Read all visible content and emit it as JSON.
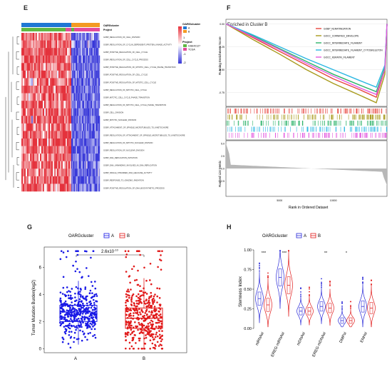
{
  "panels": {
    "E": {
      "letter": "E",
      "legend_oarg_title": "OARGcluster",
      "legend_oarg_items": [
        "A",
        "B"
      ],
      "legend_project_title": "Project",
      "legend_project_items": [
        "GSE42127",
        "TCGA"
      ],
      "row_labels_header": "OARGcluster",
      "row_labels_header2": "Project",
      "colorbar_ticks": [
        "2",
        "1",
        "0",
        "-1",
        "-2"
      ],
      "genesets": [
        "GOBP_REGULATION_OF_CELL_DIVISION",
        "GOBP_REGULATION_OF_CYCLIN_DEPENDENT_PROTEIN_KINASE_ACTIVITY",
        "GOBP_POSITIVE_REGULATION_OF_CELL_CYCLE",
        "GOBP_REGULATION_OF_CELL_CYCLE_PROCESS",
        "GOBP_POSITIVE_REGULATION_OF_MITOTIC_CELL_CYCLE_PHASE_TRANSITION",
        "GOBP_POSITIVE_REGULATION_OF_CELL_CYCLE",
        "GOBP_POSITIVE_REGULATION_OF_MITOTIC_CELL_CYCLE",
        "GOBP_REGULATION_OF_MITOTIC_CELL_CYCLE",
        "GOBP_MITOTIC_CELL_CYCLE_PHASE_TRANSITION",
        "GOBP_REGULATION_OF_MITOTIC_CELL_CYCLE_PHASE_TRANSITION",
        "GOBP_CELL_DIVISION",
        "GOBP_MITOTIC_NUCLEAR_DIVISION",
        "GOBP_ATTACHMENT_OF_SPINDLE_MICROTUBULES_TO_KINETOCHORE",
        "GOBP_REGULATION_OF_ATTACHMENT_OF_SPINDLE_MICROTUBULES_TO_KINETOCHORE",
        "GOBP_REGULATION_OF_MITOTIC_NUCLEAR_DIVISION",
        "GOBP_REGULATION_OF_NUCLEAR_DIVISION",
        "GOBP_DNA_REPLICATION_INITIATION",
        "GOBP_DNA_UNWINDING_INVOLVED_IN_DNA_REPLICATION",
        "GOBP_SINGLE_STRANDED_DNA_HELICASE_ACTIVITY",
        "GOBP_RESPONSE_TO_IONIZING_RADIATION",
        "GOBP_POSITIVE_REGULATION_OF_DNA_BIOSYNTHETIC_PROCESS"
      ],
      "colors": {
        "high": "#e8323c",
        "low": "#3636d8",
        "A": "#1f77d4",
        "B": "#f39a22",
        "GSE42127": "#5fb843",
        "TCGA": "#e44b9a"
      }
    },
    "F": {
      "letter": "F",
      "title": "Enriched in Cluster B",
      "ylabel_top": "Running Enrichment Score",
      "ylabel_bottom": "Ranked List Metric",
      "xlabel": "Rank in Ordered Dataset",
      "top_yticks": [
        "0.00",
        "-0.25",
        "-0.50",
        "-0.75"
      ],
      "bottom_yticks": [
        "5.0",
        "2.5",
        "0.0",
        "-2.5"
      ],
      "xticks": [
        "5000",
        "10000"
      ],
      "legend": [
        {
          "name": "GOBP_KERATINIZATION",
          "color": "#e8463e"
        },
        {
          "name": "GOCC_CORNIFIED_ENVELOPE",
          "color": "#a89a1c"
        },
        {
          "name": "GOCC_INTERMEDIATE_FILAMENT",
          "color": "#2db36a"
        },
        {
          "name": "GOCC_INTERMEDIATE_FILAMENT_CYTOSKELETON",
          "color": "#2ab7e2"
        },
        {
          "name": "GOCC_KERATIN_FILAMENT",
          "color": "#e35adf"
        }
      ]
    },
    "G": {
      "letter": "G",
      "legend_title": "OARGcluster",
      "legend_items": [
        "A",
        "B"
      ],
      "pvalue": "2.6x10",
      "pvalue_exp": "-10",
      "ylabel": "Tumor Mutation Burden(log2)",
      "yticks": [
        "0",
        "2",
        "4",
        "6"
      ],
      "xticks": [
        "A",
        "B"
      ],
      "colors": {
        "A": "#1a1ae6",
        "B": "#e11b1b"
      }
    },
    "H": {
      "letter": "H",
      "legend_title": "OARGcluster",
      "legend_items": [
        "A",
        "B"
      ],
      "ylabel": "Stemness Index",
      "yticks": [
        "0.00",
        "0.25",
        "0.50",
        "0.75",
        "1.00"
      ],
      "categories": [
        "mRNAsi",
        "EREG-mRNAsi",
        "mDNAsi",
        "EREG-mDNAsi",
        "DMPsi",
        "ENHsi"
      ],
      "significance": [
        "***",
        "***",
        "",
        "**",
        "*",
        ""
      ],
      "colors": {
        "A": "#2a2ad8",
        "B": "#e11b1b"
      }
    }
  },
  "chart_data": [
    {
      "type": "heatmap",
      "panel": "E",
      "legend": [
        "OARGcluster: A, B",
        "Project: GSE42127, TCGA"
      ],
      "color_range": [
        -2,
        2
      ],
      "rows": 21,
      "pattern": "cluster A columns high (red), cluster B columns low (blue)"
    },
    {
      "type": "line",
      "panel": "F",
      "title": "Enriched in Cluster B",
      "xlabel": "Rank in Ordered Dataset",
      "ylabel": "Running Enrichment Score",
      "xlim": [
        0,
        15000
      ],
      "ylim": [
        -0.9,
        0.05
      ],
      "series": [
        {
          "name": "GOBP_KERATINIZATION",
          "x": [
            0,
            2500,
            5000,
            7500,
            10000,
            12500,
            14000,
            14800,
            15000
          ],
          "y": [
            0.0,
            -0.15,
            -0.3,
            -0.45,
            -0.6,
            -0.72,
            -0.8,
            -0.5,
            0.0
          ]
        },
        {
          "name": "GOCC_CORNIFIED_ENVELOPE",
          "x": [
            0,
            2500,
            5000,
            7500,
            10000,
            12500,
            14000,
            14800,
            15000
          ],
          "y": [
            0.0,
            -0.17,
            -0.33,
            -0.5,
            -0.65,
            -0.78,
            -0.86,
            -0.55,
            0.0
          ]
        },
        {
          "name": "GOCC_INTERMEDIATE_FILAMENT",
          "x": [
            0,
            2500,
            5000,
            7500,
            10000,
            12500,
            14000,
            14800,
            15000
          ],
          "y": [
            0.0,
            -0.13,
            -0.27,
            -0.41,
            -0.55,
            -0.67,
            -0.74,
            -0.48,
            0.0
          ]
        },
        {
          "name": "GOCC_INTERMEDIATE_FILAMENT_CYTOSKELETON",
          "x": [
            0,
            2500,
            5000,
            7500,
            10000,
            12500,
            14000,
            14800,
            15000
          ],
          "y": [
            0.0,
            -0.12,
            -0.25,
            -0.38,
            -0.5,
            -0.62,
            -0.69,
            -0.45,
            0.0
          ]
        },
        {
          "name": "GOCC_KERATIN_FILAMENT",
          "x": [
            0,
            2500,
            5000,
            7500,
            10000,
            12500,
            14000,
            14800,
            15000
          ],
          "y": [
            0.0,
            -0.14,
            -0.28,
            -0.43,
            -0.57,
            -0.7,
            -0.77,
            -0.5,
            0.0
          ]
        }
      ]
    },
    {
      "type": "box",
      "panel": "G",
      "ylabel": "Tumor Mutation Burden(log2)",
      "categories": [
        "A",
        "B"
      ],
      "ylim": [
        -0.3,
        7.5
      ],
      "series": [
        {
          "name": "A",
          "median": 2.7,
          "q1": 2.0,
          "q3": 3.2,
          "min": 0.3,
          "max": 5.0
        },
        {
          "name": "B",
          "median": 2.25,
          "q1": 1.5,
          "q3": 3.0,
          "min": 0.0,
          "max": 5.2
        }
      ],
      "annotation": "2.6x10^-10"
    },
    {
      "type": "violin",
      "panel": "H",
      "ylabel": "Stemness Index",
      "categories": [
        "mRNAsi",
        "EREG-mRNAsi",
        "mDNAsi",
        "EREG-mDNAsi",
        "DMPsi",
        "ENHsi"
      ],
      "ylim": [
        0,
        1
      ],
      "series": [
        {
          "name": "A",
          "median": [
            0.38,
            0.65,
            0.22,
            0.28,
            0.1,
            0.28
          ]
        },
        {
          "name": "B",
          "median": [
            0.3,
            0.55,
            0.22,
            0.26,
            0.1,
            0.26
          ]
        }
      ]
    }
  ]
}
